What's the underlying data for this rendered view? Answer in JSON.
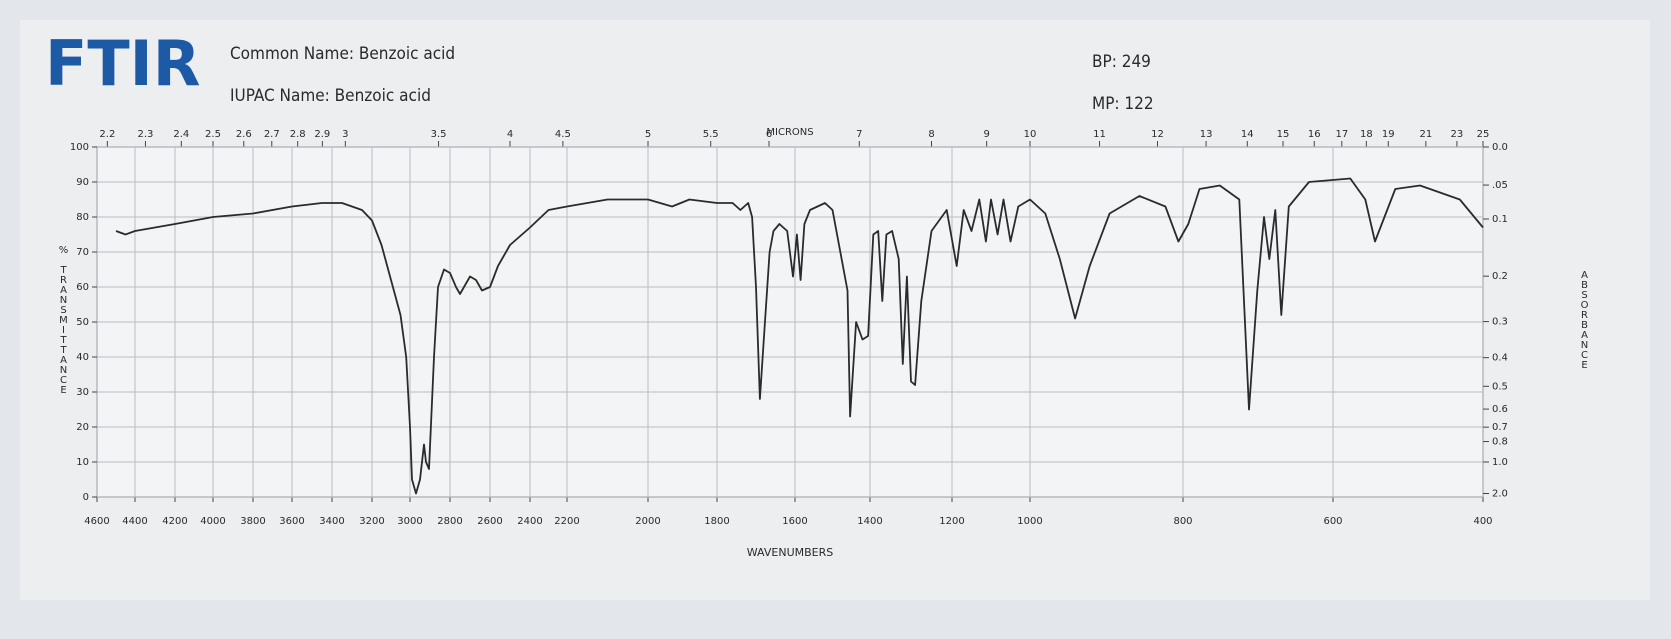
{
  "header": {
    "logo": "FTIR",
    "common_name": "Common Name: Benzoic acid",
    "iupac_name": "IUPAC Name: Benzoic acid",
    "bp": "BP: 249",
    "mp": "MP: 122"
  },
  "chart_data": {
    "type": "line",
    "color": "#2b2b2b",
    "grid": true,
    "x_label": "WAVENUMBERS",
    "x2_label": "MICRONS",
    "y_label": "% TRANSMITTANCE",
    "y2_label": "ABSORBANCE",
    "xlim": [
      4600,
      400
    ],
    "xticks": [
      4600,
      4400,
      4200,
      4000,
      3800,
      3600,
      3400,
      3200,
      3000,
      2800,
      2600,
      2400,
      2200,
      2000,
      1800,
      1600,
      1400,
      1200,
      1000,
      800,
      600,
      400
    ],
    "x2ticks": [
      2.2,
      2.3,
      2.4,
      2.5,
      2.6,
      2.7,
      2.8,
      2.9,
      3,
      3.5,
      4,
      4.5,
      5,
      5.5,
      6,
      7,
      8,
      9,
      10,
      11,
      12,
      13,
      14,
      15,
      16,
      17,
      18,
      19,
      21,
      23,
      25
    ],
    "ylim": [
      0,
      100
    ],
    "yticks": [
      0,
      10,
      20,
      30,
      40,
      50,
      60,
      70,
      80,
      90,
      100
    ],
    "y2_scale": "absorbance",
    "y2ticks": [
      {
        "value": 0,
        "label": "0.0"
      },
      {
        "value": 0.05,
        "label": ".05"
      },
      0.1,
      0.2,
      0.3,
      0.4,
      0.5,
      0.6,
      0.7,
      0.8,
      {
        "value": 1,
        "label": "1.0"
      },
      {
        "value": 2,
        "label": "2.0"
      }
    ],
    "x": [
      4500,
      4450,
      4400,
      4200,
      4000,
      3800,
      3600,
      3450,
      3350,
      3250,
      3200,
      3150,
      3100,
      3080,
      3050,
      3020,
      3000,
      2990,
      2970,
      2950,
      2930,
      2920,
      2905,
      2880,
      2860,
      2830,
      2800,
      2770,
      2750,
      2700,
      2670,
      2640,
      2600,
      2560,
      2500,
      2400,
      2300,
      2200,
      2100,
      2000,
      1930,
      1880,
      1800,
      1760,
      1740,
      1720,
      1710,
      1700,
      1690,
      1680,
      1665,
      1655,
      1640,
      1620,
      1605,
      1595,
      1585,
      1575,
      1560,
      1520,
      1500,
      1460,
      1453,
      1437,
      1420,
      1405,
      1392,
      1380,
      1370,
      1360,
      1346,
      1330,
      1320,
      1310,
      1300,
      1290,
      1275,
      1250,
      1213,
      1188,
      1170,
      1150,
      1130,
      1113,
      1100,
      1083,
      1068,
      1050,
      1030,
      1000,
      980,
      961,
      941,
      922,
      896,
      857,
      823,
      806,
      793,
      778,
      751,
      725,
      712,
      701,
      692,
      685,
      677,
      669,
      659,
      632,
      577,
      557,
      544,
      517,
      484,
      431,
      400
    ],
    "values": [
      76,
      75,
      76,
      78,
      80,
      81,
      83,
      84,
      84,
      82,
      79,
      72,
      62,
      58,
      52,
      40,
      20,
      5,
      1,
      5,
      15,
      10,
      8,
      40,
      60,
      65,
      64,
      60,
      58,
      63,
      62,
      59,
      60,
      66,
      72,
      77,
      82,
      83,
      85,
      85,
      83,
      85,
      84,
      84,
      82,
      84,
      80,
      60,
      28,
      45,
      70,
      76,
      78,
      76,
      63,
      75,
      62,
      78,
      82,
      84,
      82,
      59,
      23,
      50,
      45,
      46,
      75,
      76,
      56,
      75,
      76,
      68,
      38,
      63,
      33,
      32,
      56,
      76,
      82,
      66,
      82,
      76,
      85,
      73,
      85,
      75,
      85,
      73,
      83,
      85,
      81,
      68,
      51,
      66,
      81,
      86,
      83,
      73,
      78,
      88,
      89,
      85,
      25,
      59,
      80,
      68,
      82,
      52,
      83,
      90,
      91,
      85,
      73,
      88,
      89,
      85,
      77
    ]
  }
}
